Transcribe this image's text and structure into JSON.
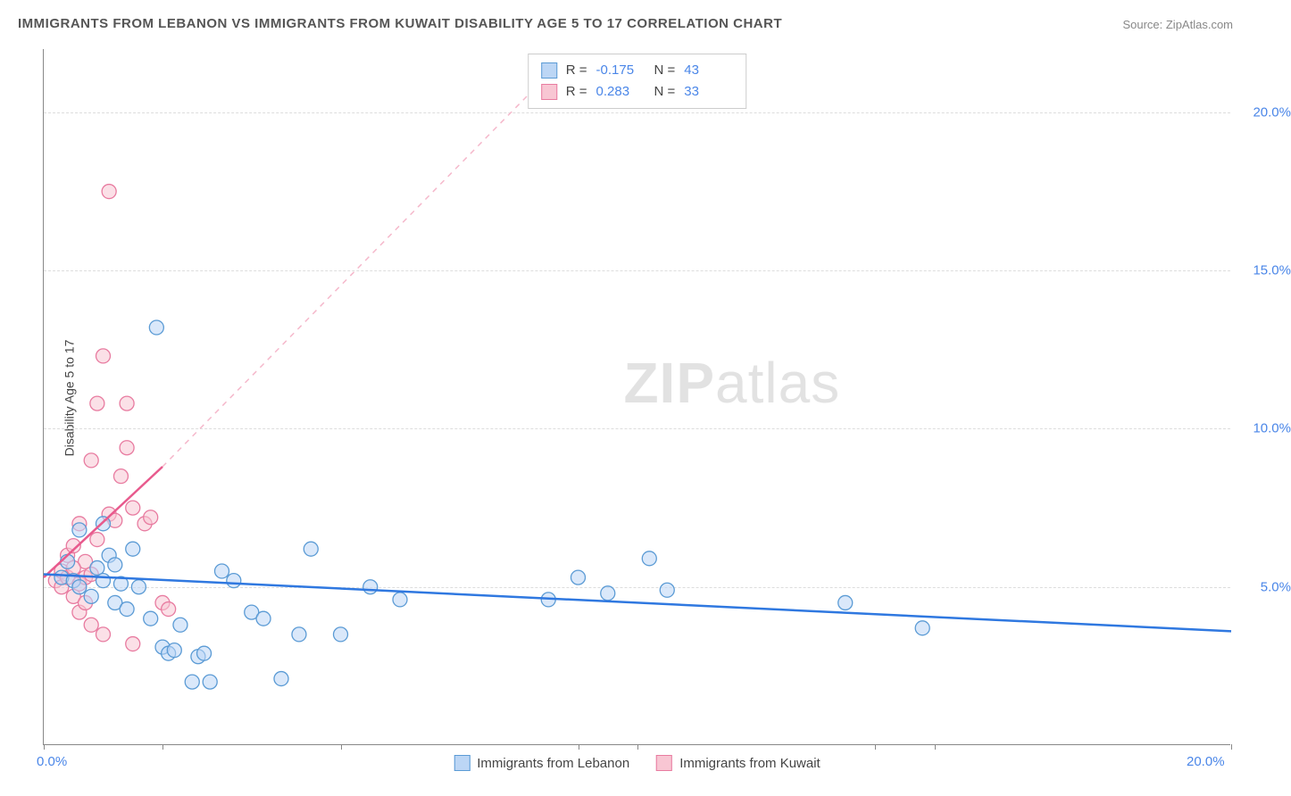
{
  "title": "IMMIGRANTS FROM LEBANON VS IMMIGRANTS FROM KUWAIT DISABILITY AGE 5 TO 17 CORRELATION CHART",
  "source": "Source: ZipAtlas.com",
  "ylabel": "Disability Age 5 to 17",
  "watermark": {
    "bold": "ZIP",
    "rest": "atlas"
  },
  "chart": {
    "type": "scatter",
    "xlim": [
      0,
      20
    ],
    "ylim": [
      0,
      22
    ],
    "xtick_positions": [
      0,
      2,
      5,
      9,
      10,
      14,
      15,
      20
    ],
    "xtick_labels_shown": {
      "0": "0.0%",
      "20": "20.0%"
    },
    "ytick_positions": [
      5,
      10,
      15,
      20
    ],
    "ytick_labels": {
      "5": "5.0%",
      "10": "10.0%",
      "15": "15.0%",
      "20": "20.0%"
    },
    "grid_color": "#dddddd",
    "axis_color": "#888888",
    "background": "#ffffff",
    "label_color": "#4a86e8",
    "series": [
      {
        "name": "Immigrants from Lebanon",
        "key": "lebanon",
        "color_fill": "#bcd6f5",
        "color_stroke": "#5b9bd5",
        "marker_radius": 8,
        "fill_opacity": 0.55,
        "R": "-0.175",
        "N": "43",
        "trendline": {
          "x1": 0,
          "y1": 5.4,
          "x2": 20,
          "y2": 3.6,
          "color": "#2f78e0",
          "width": 2.5,
          "dash": "none"
        },
        "points": [
          [
            0.3,
            5.3
          ],
          [
            0.5,
            5.2
          ],
          [
            0.6,
            5.0
          ],
          [
            0.8,
            4.7
          ],
          [
            0.9,
            5.6
          ],
          [
            1.0,
            5.2
          ],
          [
            1.1,
            6.0
          ],
          [
            1.2,
            4.5
          ],
          [
            1.3,
            5.1
          ],
          [
            1.4,
            4.3
          ],
          [
            1.5,
            6.2
          ],
          [
            1.6,
            5.0
          ],
          [
            1.8,
            4.0
          ],
          [
            1.9,
            13.2
          ],
          [
            2.0,
            3.1
          ],
          [
            2.1,
            2.9
          ],
          [
            2.2,
            3.0
          ],
          [
            2.3,
            3.8
          ],
          [
            2.5,
            2.0
          ],
          [
            2.6,
            2.8
          ],
          [
            2.7,
            2.9
          ],
          [
            2.8,
            2.0
          ],
          [
            3.0,
            5.5
          ],
          [
            3.2,
            5.2
          ],
          [
            3.5,
            4.2
          ],
          [
            3.7,
            4.0
          ],
          [
            4.0,
            2.1
          ],
          [
            4.3,
            3.5
          ],
          [
            4.5,
            6.2
          ],
          [
            5.0,
            3.5
          ],
          [
            5.5,
            5.0
          ],
          [
            6.0,
            4.6
          ],
          [
            8.5,
            4.6
          ],
          [
            9.0,
            5.3
          ],
          [
            9.5,
            4.8
          ],
          [
            10.2,
            5.9
          ],
          [
            10.5,
            4.9
          ],
          [
            13.5,
            4.5
          ],
          [
            14.8,
            3.7
          ],
          [
            0.4,
            5.8
          ],
          [
            0.6,
            6.8
          ],
          [
            1.0,
            7.0
          ],
          [
            1.2,
            5.7
          ]
        ]
      },
      {
        "name": "Immigrants from Kuwait",
        "key": "kuwait",
        "color_fill": "#f8c6d3",
        "color_stroke": "#e87ba0",
        "marker_radius": 8,
        "fill_opacity": 0.55,
        "R": "0.283",
        "N": "33",
        "trendline_solid": {
          "x1": 0,
          "y1": 5.3,
          "x2": 2.0,
          "y2": 8.8,
          "color": "#e85a8d",
          "width": 2.5,
          "dash": "none"
        },
        "trendline_dashed": {
          "x1": 2.0,
          "y1": 8.8,
          "x2": 8.5,
          "y2": 21.2,
          "color": "#f5b8cb",
          "width": 1.5,
          "dash": "6,6"
        },
        "points": [
          [
            0.2,
            5.2
          ],
          [
            0.3,
            5.0
          ],
          [
            0.3,
            5.5
          ],
          [
            0.4,
            5.3
          ],
          [
            0.4,
            6.0
          ],
          [
            0.5,
            4.7
          ],
          [
            0.5,
            6.3
          ],
          [
            0.6,
            4.2
          ],
          [
            0.6,
            7.0
          ],
          [
            0.7,
            4.5
          ],
          [
            0.7,
            5.8
          ],
          [
            0.8,
            3.8
          ],
          [
            0.8,
            9.0
          ],
          [
            0.9,
            6.5
          ],
          [
            0.9,
            10.8
          ],
          [
            1.0,
            3.5
          ],
          [
            1.0,
            12.3
          ],
          [
            1.1,
            7.3
          ],
          [
            1.1,
            17.5
          ],
          [
            1.2,
            7.1
          ],
          [
            1.3,
            8.5
          ],
          [
            1.4,
            10.8
          ],
          [
            1.4,
            9.4
          ],
          [
            1.5,
            7.5
          ],
          [
            1.5,
            3.2
          ],
          [
            1.7,
            7.0
          ],
          [
            1.8,
            7.2
          ],
          [
            2.0,
            4.5
          ],
          [
            2.1,
            4.3
          ],
          [
            0.5,
            5.6
          ],
          [
            0.6,
            5.1
          ],
          [
            0.7,
            5.3
          ],
          [
            0.8,
            5.4
          ]
        ]
      }
    ]
  },
  "legend": {
    "items": [
      {
        "label": "Immigrants from Lebanon",
        "fill": "#bcd6f5",
        "stroke": "#5b9bd5"
      },
      {
        "label": "Immigrants from Kuwait",
        "fill": "#f8c6d3",
        "stroke": "#e87ba0"
      }
    ]
  }
}
